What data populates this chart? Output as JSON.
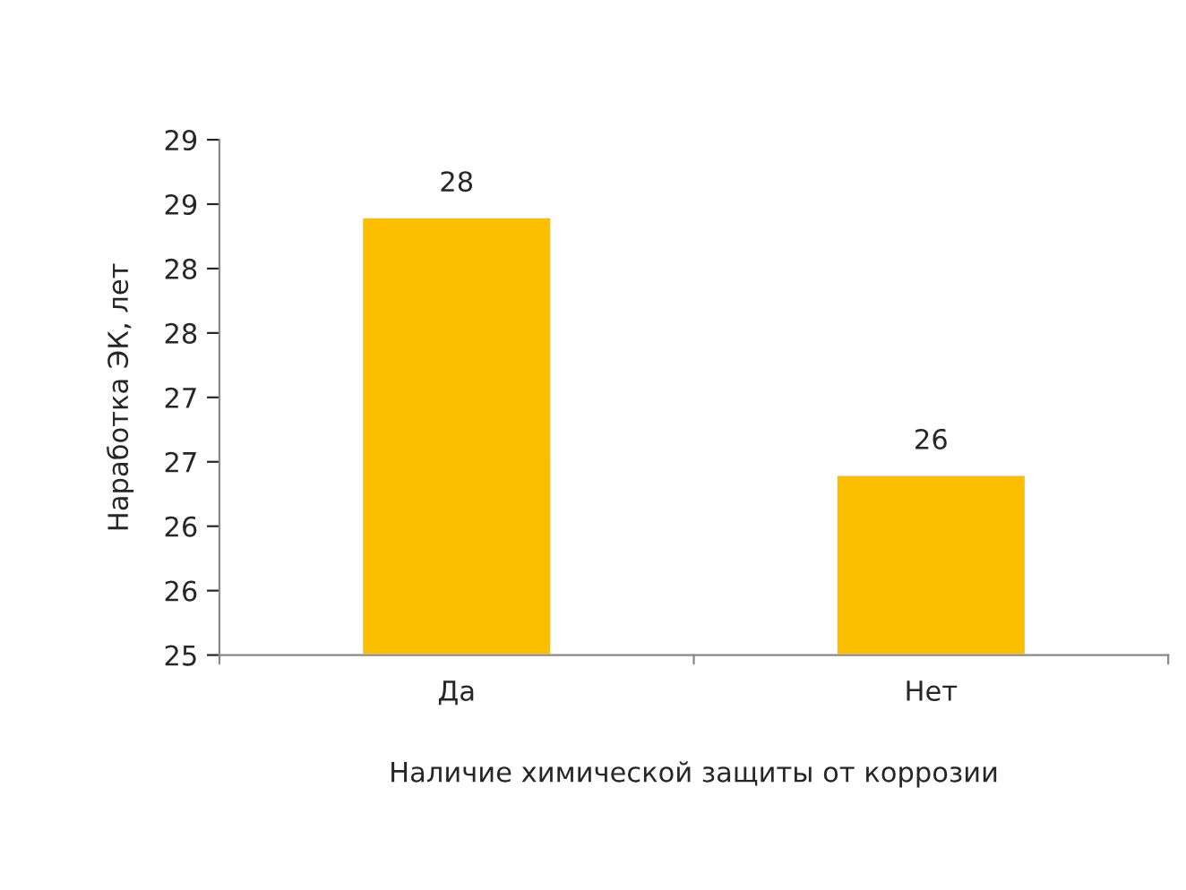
{
  "chart_data": {
    "type": "bar",
    "xlabel": "Наличие химической защиты от коррозии",
    "ylabel": "Наработка ЭК, лет",
    "categories": [
      "Да",
      "Нет"
    ],
    "values": [
      28.4,
      26.4
    ],
    "color": "#fbbf00",
    "value_labels": [
      "28",
      "26"
    ],
    "ylim": [
      25,
      29
    ],
    "yticks": [
      25,
      {
        "value": 25.5,
        "label": "26"
      },
      26,
      {
        "value": 26.5,
        "label": "27"
      },
      27,
      {
        "value": 27.5,
        "label": "28"
      },
      28,
      {
        "value": 28.5,
        "label": "29"
      },
      29
    ],
    "grid": false,
    "legend": false
  }
}
